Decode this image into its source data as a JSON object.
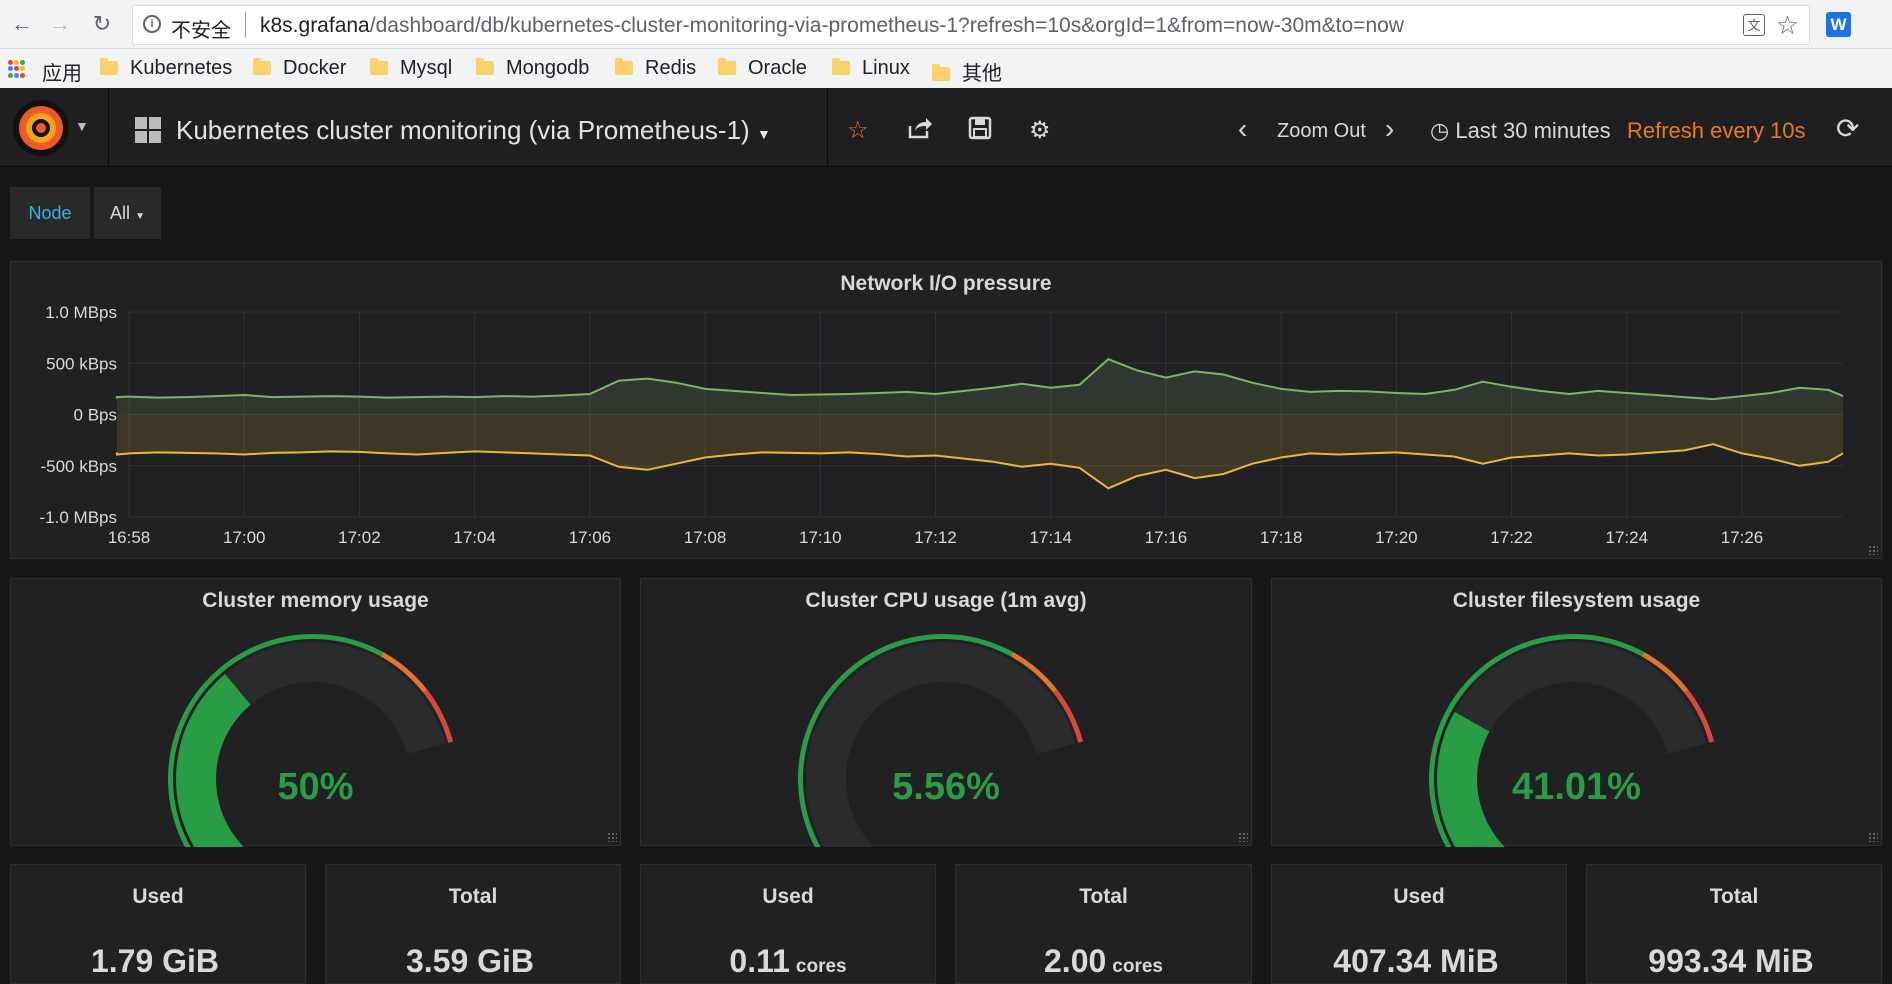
{
  "browser": {
    "security_label": "不安全",
    "url_host": "k8s.grafana",
    "url_path": "/dashboard/db/kubernetes-cluster-monitoring-via-prometheus-1?refresh=10s&orgId=1&from=now-30m&to=now",
    "bookmarks": [
      "应用",
      "Kubernetes",
      "Docker",
      "Mysql",
      "Mongodb",
      "Redis",
      "Oracle",
      "Linux",
      "其他"
    ],
    "icons": [
      "back-arrow-icon",
      "forward-arrow-icon",
      "reload-icon",
      "info-icon",
      "translate-icon",
      "bookmark-star-icon",
      "extension-w-icon",
      "apps-grid-icon",
      "folder-icon"
    ]
  },
  "navbar": {
    "dashboard_title": "Kubernetes cluster monitoring (via Prometheus-1)",
    "zoom_out_label": "Zoom Out",
    "time_range": "Last 30 minutes",
    "refresh_label": "Refresh every 10s",
    "icons": [
      "grafana-logo-icon",
      "dashboard-grid-icon",
      "star-icon",
      "share-icon",
      "save-icon",
      "gear-icon",
      "chevron-left-icon",
      "chevron-right-icon",
      "clock-icon",
      "refresh-icon"
    ]
  },
  "variables": {
    "node_label": "Node",
    "node_value": "All"
  },
  "chart_data": {
    "type": "line",
    "title": "Network I/O pressure",
    "y_unit_ticks": [
      "1.0 MBps",
      "500 kBps",
      "0 Bps",
      "-500 kBps",
      "-1.0 MBps"
    ],
    "ylim": [
      -1000,
      1000
    ],
    "x_ticks": [
      "16:58",
      "17:00",
      "17:02",
      "17:04",
      "17:06",
      "17:08",
      "17:10",
      "17:12",
      "17:14",
      "17:16",
      "17:18",
      "17:20",
      "17:22",
      "17:24",
      "17:26"
    ],
    "x_minutes": [
      -2,
      -1.5,
      -1,
      -0.5,
      0,
      0.5,
      1,
      1.5,
      2,
      2.5,
      3,
      3.5,
      4,
      4.5,
      5,
      5.5,
      6,
      6.5,
      7,
      7.5,
      8,
      8.5,
      9,
      9.5,
      10,
      10.5,
      11,
      11.5,
      12,
      12.5,
      13,
      13.5,
      14,
      14.5,
      15,
      15.5,
      16,
      16.5,
      17,
      17.5,
      18,
      18.5,
      19,
      19.5,
      20,
      20.5,
      21,
      21.5,
      22,
      22.5,
      23,
      23.5,
      24,
      24.5,
      25,
      25.5,
      26,
      26.5,
      27,
      27.5,
      28,
      28.5,
      29,
      29.5,
      29.8
    ],
    "grid": true,
    "series": [
      {
        "color": "#7eb26d",
        "fill": true,
        "values": [
          160,
          155,
          165,
          170,
          175,
          165,
          170,
          180,
          190,
          170,
          175,
          180,
          175,
          165,
          170,
          175,
          170,
          180,
          175,
          185,
          200,
          330,
          350,
          310,
          250,
          230,
          210,
          190,
          195,
          200,
          210,
          220,
          200,
          230,
          260,
          300,
          260,
          290,
          540,
          430,
          360,
          420,
          390,
          310,
          250,
          220,
          230,
          225,
          210,
          200,
          240,
          320,
          270,
          230,
          200,
          230,
          210,
          190,
          170,
          150,
          180,
          210,
          260,
          240,
          180
        ]
      },
      {
        "color": "#eab839",
        "fill": true,
        "values": [
          -370,
          -375,
          -380,
          -390,
          -380,
          -370,
          -375,
          -380,
          -390,
          -375,
          -370,
          -360,
          -365,
          -380,
          -390,
          -375,
          -360,
          -370,
          -380,
          -390,
          -400,
          -510,
          -540,
          -480,
          -420,
          -390,
          -370,
          -375,
          -380,
          -370,
          -385,
          -410,
          -400,
          -430,
          -460,
          -510,
          -480,
          -520,
          -720,
          -600,
          -540,
          -620,
          -580,
          -480,
          -420,
          -380,
          -390,
          -380,
          -370,
          -390,
          -410,
          -480,
          -420,
          -400,
          -380,
          -400,
          -390,
          -370,
          -350,
          -290,
          -380,
          -430,
          -500,
          -460,
          -380
        ]
      }
    ]
  },
  "gauges": [
    {
      "title": "Cluster memory usage",
      "value": 50,
      "display": "50%"
    },
    {
      "title": "Cluster CPU usage (1m avg)",
      "value": 5.56,
      "display": "5.56%"
    },
    {
      "title": "Cluster filesystem usage",
      "value": 41.01,
      "display": "41.01%"
    }
  ],
  "gauge_thresholds": {
    "ok_color": "#299c46",
    "warn_color": "#e0752d",
    "crit_color": "#d44a3a",
    "warn_at": 80,
    "crit_at": 90
  },
  "stats": [
    {
      "title": "Used",
      "value": "1.79 GiB",
      "unit": ""
    },
    {
      "title": "Total",
      "value": "3.59 GiB",
      "unit": ""
    },
    {
      "title": "Used",
      "value": "0.11",
      "unit": "cores"
    },
    {
      "title": "Total",
      "value": "2.00",
      "unit": "cores"
    },
    {
      "title": "Used",
      "value": "407.34 MiB",
      "unit": ""
    },
    {
      "title": "Total",
      "value": "993.34 MiB",
      "unit": ""
    }
  ]
}
